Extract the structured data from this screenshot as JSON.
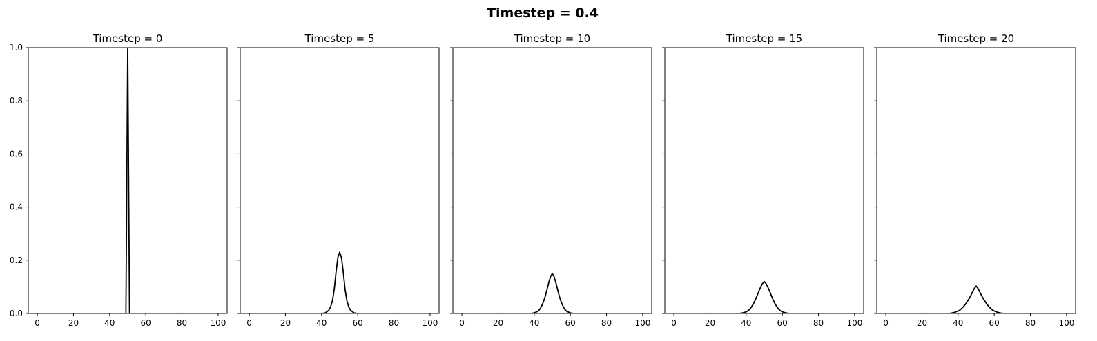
{
  "figure": {
    "suptitle": "Timestep = 0.4",
    "background": "#ffffff",
    "line_color": "#000000"
  },
  "chart_data": [
    {
      "type": "line",
      "title": "Timestep = 0",
      "xlim": [
        -5,
        105
      ],
      "ylim": [
        0,
        1
      ],
      "xticks": [
        0,
        20,
        40,
        60,
        80,
        100
      ],
      "yticks": [
        0.0,
        0.2,
        0.4,
        0.6,
        0.8,
        1.0
      ],
      "ytick_labels": [
        "0.0",
        "0.2",
        "0.4",
        "0.6",
        "0.8",
        "1.0"
      ],
      "grid": false,
      "series": [
        {
          "x": [
            0,
            49,
            50,
            51,
            100
          ],
          "y": [
            0,
            0,
            1.0,
            0,
            0
          ]
        }
      ]
    },
    {
      "type": "line",
      "title": "Timestep = 5",
      "xlim": [
        -5,
        105
      ],
      "ylim": [
        0,
        1
      ],
      "xticks": [
        0,
        20,
        40,
        60,
        80,
        100
      ],
      "yticks": [
        0.0,
        0.2,
        0.4,
        0.6,
        0.8,
        1.0
      ],
      "ytick_labels": [
        "",
        "",
        "",
        "",
        "",
        ""
      ],
      "grid": false,
      "series": [
        {
          "x": [
            0,
            40,
            42,
            44,
            45,
            46,
            47,
            48,
            49,
            50,
            51,
            52,
            53,
            54,
            55,
            56,
            58,
            60,
            100
          ],
          "y": [
            0,
            0.0,
            0.002,
            0.012,
            0.025,
            0.048,
            0.09,
            0.155,
            0.21,
            0.23,
            0.21,
            0.155,
            0.09,
            0.048,
            0.025,
            0.012,
            0.002,
            0.0,
            0
          ]
        }
      ]
    },
    {
      "type": "line",
      "title": "Timestep = 10",
      "xlim": [
        -5,
        105
      ],
      "ylim": [
        0,
        1
      ],
      "xticks": [
        0,
        20,
        40,
        60,
        80,
        100
      ],
      "yticks": [
        0.0,
        0.2,
        0.4,
        0.6,
        0.8,
        1.0
      ],
      "ytick_labels": [
        "",
        "",
        "",
        "",
        "",
        ""
      ],
      "grid": false,
      "series": [
        {
          "x": [
            0,
            38,
            40,
            42,
            43,
            44,
            45,
            46,
            47,
            48,
            49,
            50,
            51,
            52,
            53,
            54,
            55,
            56,
            57,
            58,
            60,
            62,
            100
          ],
          "y": [
            0,
            0.0,
            0.002,
            0.008,
            0.015,
            0.026,
            0.042,
            0.062,
            0.088,
            0.115,
            0.138,
            0.15,
            0.138,
            0.115,
            0.088,
            0.062,
            0.042,
            0.026,
            0.015,
            0.008,
            0.002,
            0.0,
            0
          ]
        }
      ]
    },
    {
      "type": "line",
      "title": "Timestep = 15",
      "xlim": [
        -5,
        105
      ],
      "ylim": [
        0,
        1
      ],
      "xticks": [
        0,
        20,
        40,
        60,
        80,
        100
      ],
      "yticks": [
        0.0,
        0.2,
        0.4,
        0.6,
        0.8,
        1.0
      ],
      "ytick_labels": [
        "",
        "",
        "",
        "",
        "",
        ""
      ],
      "grid": false,
      "series": [
        {
          "x": [
            0,
            36,
            38,
            40,
            41,
            42,
            43,
            44,
            45,
            46,
            47,
            48,
            49,
            50,
            51,
            52,
            53,
            54,
            55,
            56,
            57,
            58,
            59,
            60,
            62,
            64,
            100
          ],
          "y": [
            0,
            0.0,
            0.002,
            0.006,
            0.01,
            0.016,
            0.025,
            0.036,
            0.05,
            0.066,
            0.083,
            0.099,
            0.112,
            0.12,
            0.112,
            0.099,
            0.083,
            0.066,
            0.05,
            0.036,
            0.025,
            0.016,
            0.01,
            0.006,
            0.002,
            0.0,
            0
          ]
        }
      ]
    },
    {
      "type": "line",
      "title": "Timestep = 20",
      "xlim": [
        -5,
        105
      ],
      "ylim": [
        0,
        1
      ],
      "xticks": [
        0,
        20,
        40,
        60,
        80,
        100
      ],
      "yticks": [
        0.0,
        0.2,
        0.4,
        0.6,
        0.8,
        1.0
      ],
      "ytick_labels": [
        "",
        "",
        "",
        "",
        "",
        ""
      ],
      "grid": false,
      "series": [
        {
          "x": [
            0,
            34,
            36,
            38,
            40,
            41,
            42,
            43,
            44,
            45,
            46,
            47,
            48,
            49,
            50,
            51,
            52,
            53,
            54,
            55,
            56,
            57,
            58,
            59,
            60,
            62,
            64,
            66,
            100
          ],
          "y": [
            0,
            0.0,
            0.001,
            0.004,
            0.009,
            0.013,
            0.019,
            0.026,
            0.034,
            0.044,
            0.055,
            0.067,
            0.081,
            0.094,
            0.103,
            0.094,
            0.081,
            0.067,
            0.055,
            0.044,
            0.034,
            0.026,
            0.019,
            0.013,
            0.009,
            0.004,
            0.001,
            0.0,
            0
          ]
        }
      ]
    }
  ]
}
